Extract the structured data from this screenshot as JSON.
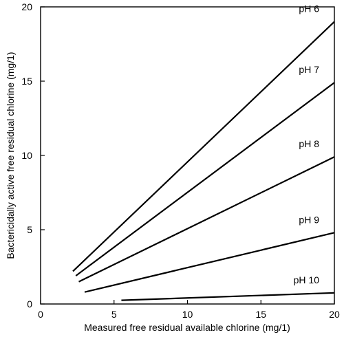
{
  "chart_data": {
    "type": "line",
    "title": "",
    "xlabel": "Measured free residual available chlorine (mg/1)",
    "ylabel": "Bactericidally active free residual chlorine (mg/1)",
    "xlim": [
      0,
      20
    ],
    "ylim": [
      0,
      20
    ],
    "x_ticks": [
      "0",
      "5",
      "10",
      "15",
      "20"
    ],
    "y_ticks": [
      "0",
      "5",
      "10",
      "15",
      "20"
    ],
    "grid": false,
    "series": [
      {
        "name": "pH 6",
        "x": [
          2.2,
          20
        ],
        "y": [
          2.2,
          19.0
        ]
      },
      {
        "name": "pH 7",
        "x": [
          2.4,
          20
        ],
        "y": [
          1.9,
          14.9
        ]
      },
      {
        "name": "pH 8",
        "x": [
          2.6,
          20
        ],
        "y": [
          1.5,
          9.9
        ]
      },
      {
        "name": "pH 9",
        "x": [
          3.0,
          20
        ],
        "y": [
          0.8,
          4.8
        ]
      },
      {
        "name": "pH 10",
        "x": [
          5.5,
          20
        ],
        "y": [
          0.25,
          0.75
        ]
      }
    ]
  }
}
